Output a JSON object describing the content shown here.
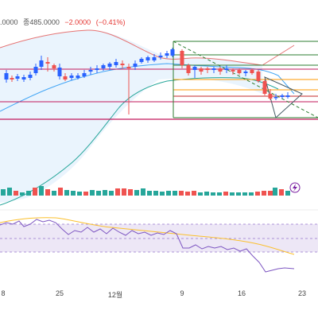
{
  "header": {
    "open_partial": ".0000",
    "close_label": "종",
    "close_value": "485.0000",
    "change": "−2.0000",
    "change_pct": "(−0.41%)"
  },
  "x_axis": {
    "labels": [
      "8",
      "25",
      "12월",
      "9",
      "16",
      "23"
    ]
  },
  "colors": {
    "up": "#2962ff",
    "down": "#ef5350",
    "bb_upper": "#e57373",
    "bb_lower": "#26a69a",
    "bb_mid": "#42a5f5",
    "bb_fill": "#eaf4fd",
    "rsi": "#7e57c2",
    "rsi_ma": "#fbc02d",
    "fib_green": "#2e7d32",
    "fib_orange": "#f57c00",
    "fib_red": "#c62828",
    "hline": "#c2185b",
    "vol_up": "#26a69a",
    "vol_down": "#ef5350"
  },
  "icons": {
    "lightning": "lightning-icon"
  }
}
